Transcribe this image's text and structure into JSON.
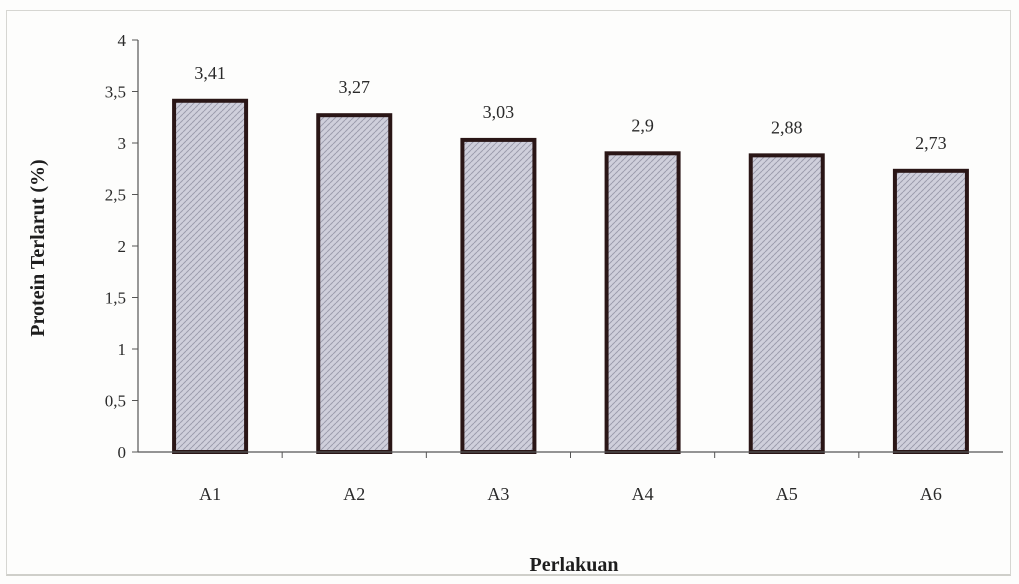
{
  "chart_data": {
    "type": "bar",
    "categories": [
      "A1",
      "A2",
      "A3",
      "A4",
      "A5",
      "A6"
    ],
    "values": [
      3.41,
      3.27,
      3.03,
      2.9,
      2.88,
      2.73
    ],
    "value_labels": [
      "3,41",
      "3,27",
      "3,03",
      "2,9",
      "2,88",
      "2,73"
    ],
    "title": "",
    "xlabel": "Perlakuan",
    "ylabel": "Protein Terlarut (%)",
    "ylim": [
      0,
      4
    ],
    "yticks": [
      0,
      0.5,
      1,
      1.5,
      2,
      2.5,
      3,
      3.5,
      4
    ],
    "ytick_labels": [
      "0",
      "0,5",
      "1",
      "1,5",
      "2",
      "2,5",
      "3",
      "3,5",
      "4"
    ],
    "grid": false,
    "legend": "none",
    "colors": {
      "bar_fill": "#c9c9d6",
      "bar_border": "#2a1616",
      "axis": "#555555"
    }
  }
}
